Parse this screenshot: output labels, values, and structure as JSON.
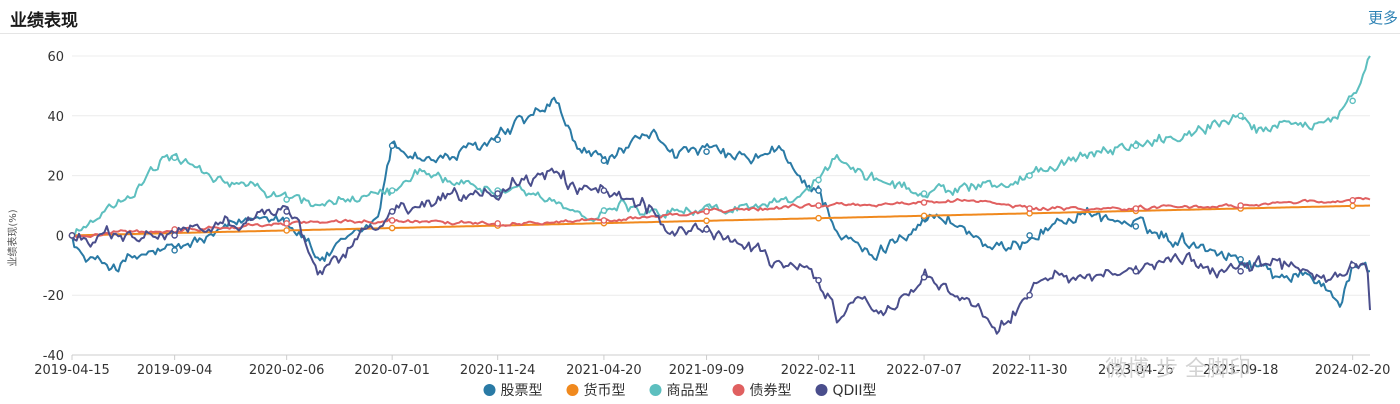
{
  "header": {
    "title": "业绩表现",
    "more_label": "更多"
  },
  "watermark": "微博 步 全脚印",
  "chart_data": {
    "type": "line",
    "ylabel": "业绩表现(%)",
    "ylim": [
      -40,
      60
    ],
    "yticks": [
      -40,
      -20,
      0,
      20,
      40,
      60
    ],
    "xrange": [
      "2019-04-15",
      "2024-03-15"
    ],
    "xticks": [
      "2019-04-15",
      "2019-09-04",
      "2020-02-06",
      "2020-07-01",
      "2020-11-24",
      "2021-04-20",
      "2021-09-09",
      "2022-02-11",
      "2022-07-07",
      "2022-11-30",
      "2023-04-26",
      "2023-09-18",
      "2024-02-20"
    ],
    "grid": true,
    "legend": "bottom",
    "series": [
      {
        "name": "股票型",
        "color": "#2a7aa5",
        "noise": 1.5,
        "points": [
          [
            "2019-04-15",
            0
          ],
          [
            "2019-05-01",
            -8
          ],
          [
            "2019-06-15",
            -10
          ],
          [
            "2019-08-01",
            -6
          ],
          [
            "2019-09-04",
            -5
          ],
          [
            "2019-11-01",
            0
          ],
          [
            "2019-12-15",
            5
          ],
          [
            "2020-01-20",
            8
          ],
          [
            "2020-02-06",
            5
          ],
          [
            "2020-03-01",
            0
          ],
          [
            "2020-03-20",
            -8
          ],
          [
            "2020-05-01",
            -3
          ],
          [
            "2020-06-10",
            5
          ],
          [
            "2020-07-01",
            30
          ],
          [
            "2020-07-20",
            28
          ],
          [
            "2020-09-01",
            25
          ],
          [
            "2020-10-15",
            28
          ],
          [
            "2020-11-24",
            32
          ],
          [
            "2021-01-01",
            38
          ],
          [
            "2021-02-10",
            44
          ],
          [
            "2021-03-10",
            30
          ],
          [
            "2021-04-20",
            25
          ],
          [
            "2021-06-01",
            30
          ],
          [
            "2021-07-01",
            33
          ],
          [
            "2021-08-01",
            28
          ],
          [
            "2021-09-09",
            28
          ],
          [
            "2021-11-01",
            25
          ],
          [
            "2021-12-20",
            28
          ],
          [
            "2022-01-10",
            20
          ],
          [
            "2022-02-11",
            15
          ],
          [
            "2022-03-15",
            0
          ],
          [
            "2022-04-27",
            -8
          ],
          [
            "2022-06-01",
            0
          ],
          [
            "2022-07-07",
            6
          ],
          [
            "2022-08-15",
            5
          ],
          [
            "2022-10-01",
            -3
          ],
          [
            "2022-10-31",
            -6
          ],
          [
            "2022-11-30",
            0
          ],
          [
            "2023-01-15",
            5
          ],
          [
            "2023-02-15",
            8
          ],
          [
            "2023-04-26",
            3
          ],
          [
            "2023-06-01",
            0
          ],
          [
            "2023-08-01",
            -3
          ],
          [
            "2023-09-18",
            -8
          ],
          [
            "2023-11-01",
            -12
          ],
          [
            "2024-01-05",
            -15
          ],
          [
            "2024-02-05",
            -22
          ],
          [
            "2024-02-20",
            -10
          ],
          [
            "2024-03-15",
            -12
          ]
        ]
      },
      {
        "name": "货币型",
        "color": "#f0891e",
        "noise": 0,
        "points": [
          [
            "2019-04-15",
            0
          ],
          [
            "2024-03-15",
            10
          ]
        ]
      },
      {
        "name": "商品型",
        "color": "#5dbfbf",
        "noise": 1.2,
        "points": [
          [
            "2019-04-15",
            0
          ],
          [
            "2019-06-01",
            8
          ],
          [
            "2019-07-15",
            15
          ],
          [
            "2019-08-15",
            25
          ],
          [
            "2019-09-04",
            26
          ],
          [
            "2019-10-15",
            20
          ],
          [
            "2020-01-01",
            15
          ],
          [
            "2020-02-06",
            12
          ],
          [
            "2020-03-15",
            10
          ],
          [
            "2020-05-01",
            12
          ],
          [
            "2020-07-01",
            15
          ],
          [
            "2020-08-05",
            22
          ],
          [
            "2020-09-01",
            20
          ],
          [
            "2020-11-24",
            15
          ],
          [
            "2021-02-01",
            12
          ],
          [
            "2021-03-31",
            7
          ],
          [
            "2021-05-15",
            10
          ],
          [
            "2021-07-01",
            8
          ],
          [
            "2021-09-09",
            9
          ],
          [
            "2021-11-01",
            10
          ],
          [
            "2022-01-20",
            12
          ],
          [
            "2022-03-08",
            26
          ],
          [
            "2022-04-15",
            20
          ],
          [
            "2022-07-07",
            14
          ],
          [
            "2022-09-01",
            16
          ],
          [
            "2022-11-30",
            20
          ],
          [
            "2023-02-01",
            25
          ],
          [
            "2023-04-26",
            30
          ],
          [
            "2023-07-01",
            33
          ],
          [
            "2023-09-18",
            40
          ],
          [
            "2023-10-10",
            35
          ],
          [
            "2023-12-01",
            38
          ],
          [
            "2024-01-20",
            38
          ],
          [
            "2024-02-20",
            45
          ],
          [
            "2024-03-15",
            60
          ]
        ]
      },
      {
        "name": "债券型",
        "color": "#e06060",
        "noise": 0.4,
        "points": [
          [
            "2019-04-15",
            0
          ],
          [
            "2019-09-04",
            2
          ],
          [
            "2020-02-06",
            4
          ],
          [
            "2020-07-01",
            5
          ],
          [
            "2020-11-24",
            4
          ],
          [
            "2021-04-20",
            5
          ],
          [
            "2021-09-09",
            8
          ],
          [
            "2022-02-11",
            10
          ],
          [
            "2022-07-07",
            11
          ],
          [
            "2022-09-01",
            12
          ],
          [
            "2022-11-30",
            9
          ],
          [
            "2023-04-26",
            9
          ],
          [
            "2023-09-18",
            10
          ],
          [
            "2024-03-15",
            12
          ]
        ]
      },
      {
        "name": "QDII型",
        "color": "#4a4e8c",
        "noise": 1.6,
        "points": [
          [
            "2019-04-15",
            0
          ],
          [
            "2019-06-15",
            -2
          ],
          [
            "2019-09-04",
            0
          ],
          [
            "2019-12-01",
            5
          ],
          [
            "2020-02-06",
            8
          ],
          [
            "2020-02-20",
            5
          ],
          [
            "2020-03-20",
            -15
          ],
          [
            "2020-05-01",
            -5
          ],
          [
            "2020-07-01",
            8
          ],
          [
            "2020-09-01",
            12
          ],
          [
            "2020-11-24",
            14
          ],
          [
            "2021-01-01",
            18
          ],
          [
            "2021-02-15",
            22
          ],
          [
            "2021-03-15",
            14
          ],
          [
            "2021-04-20",
            15
          ],
          [
            "2021-06-15",
            10
          ],
          [
            "2021-07-20",
            2
          ],
          [
            "2021-09-09",
            2
          ],
          [
            "2021-11-01",
            -5
          ],
          [
            "2022-01-01",
            -10
          ],
          [
            "2022-02-11",
            -15
          ],
          [
            "2022-03-15",
            -30
          ],
          [
            "2022-04-15",
            -20
          ],
          [
            "2022-05-15",
            -25
          ],
          [
            "2022-07-07",
            -14
          ],
          [
            "2022-08-15",
            -18
          ],
          [
            "2022-10-15",
            -30
          ],
          [
            "2022-11-30",
            -20
          ],
          [
            "2023-01-20",
            -12
          ],
          [
            "2023-03-01",
            -15
          ],
          [
            "2023-04-26",
            -12
          ],
          [
            "2023-07-01",
            -8
          ],
          [
            "2023-09-18",
            -12
          ],
          [
            "2023-11-01",
            -8
          ],
          [
            "2023-12-15",
            -12
          ],
          [
            "2024-01-20",
            -15
          ],
          [
            "2024-02-20",
            -10
          ],
          [
            "2024-03-10",
            -10
          ],
          [
            "2024-03-15",
            -25
          ]
        ]
      }
    ]
  }
}
